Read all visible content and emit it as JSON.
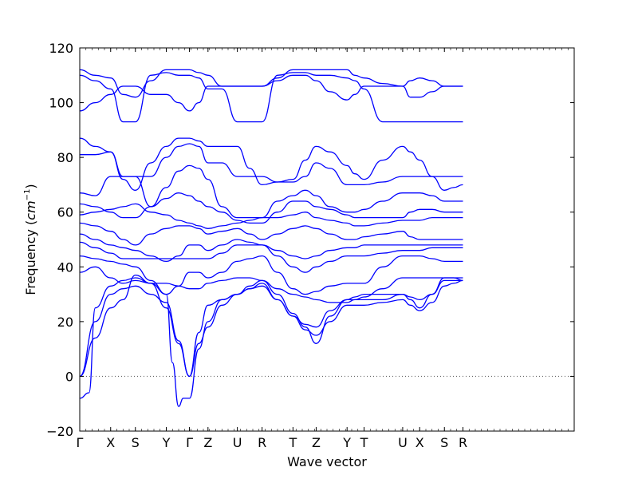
{
  "chart_data": {
    "type": "line",
    "title": "",
    "xlabel": "Wave vector",
    "ylabel": "Frequency",
    "ylabel_unit": "cm",
    "ylabel_unit_exponent": "−1",
    "ylim": [
      -20,
      120
    ],
    "yticks": [
      -20,
      0,
      20,
      40,
      60,
      80,
      100,
      120
    ],
    "xlim": [
      0,
      16
    ],
    "xticks": [
      {
        "label": "Γ",
        "x": 0
      },
      {
        "label": "X",
        "x": 1
      },
      {
        "label": "S",
        "x": 1.8
      },
      {
        "label": "Y",
        "x": 2.8
      },
      {
        "label": "Γ",
        "x": 3.55
      },
      {
        "label": "Z",
        "x": 4.15
      },
      {
        "label": "U",
        "x": 5.1
      },
      {
        "label": "R",
        "x": 5.9
      },
      {
        "label": "T",
        "x": 6.9
      },
      {
        "label": "Z",
        "x": 7.65
      },
      {
        "label": "Y",
        "x": 8.65
      },
      {
        "label": "T",
        "x": 9.2
      },
      {
        "label": "U",
        "x": 10.45
      },
      {
        "label": "X",
        "x": 11.0
      },
      {
        "label": "S",
        "x": 11.8
      },
      {
        "label": "R",
        "x": 12.4
      }
    ],
    "zero_line": {
      "y": 0,
      "style": "dotted"
    },
    "line_color": "#0000ff",
    "grid": false,
    "legend": "none",
    "series": [
      {
        "x": [
          0,
          0.5,
          1,
          1.4,
          1.8,
          2.3,
          2.8,
          3.2,
          3.55,
          3.85,
          4.15,
          4.6,
          5.1,
          5.5,
          5.9,
          6.4,
          6.9,
          7.3,
          7.65,
          8.1,
          8.65,
          8.9,
          9.2,
          9.8,
          10.45,
          10.7,
          11.0,
          11.4,
          11.8,
          12.1,
          12.4
        ],
        "y": [
          112,
          110,
          109,
          103,
          102,
          108,
          112,
          112,
          112,
          111,
          110,
          106,
          106,
          106,
          106,
          109,
          112,
          112,
          112,
          112,
          112,
          110,
          109,
          107,
          106,
          108,
          109,
          108,
          106,
          106,
          106
        ]
      },
      {
        "x": [
          0,
          0.5,
          1,
          1.4,
          1.8,
          2.3,
          2.8,
          3.2,
          3.55,
          3.85,
          4.15,
          4.6,
          5.1,
          5.5,
          5.9,
          6.4,
          6.9,
          7.3,
          7.65,
          8.1,
          8.65,
          8.9,
          9.2,
          9.8,
          10.45,
          10.7,
          11.0,
          11.4,
          11.8,
          12.1,
          12.4
        ],
        "y": [
          110,
          108,
          105,
          93,
          93,
          110,
          111,
          110,
          110,
          109,
          105,
          105,
          93,
          93,
          93,
          110,
          111,
          111,
          110,
          110,
          109,
          108,
          105,
          93,
          93,
          93,
          93,
          93,
          93,
          93,
          93
        ]
      },
      {
        "x": [
          0,
          0.5,
          1,
          1.4,
          1.8,
          2.3,
          2.8,
          3.2,
          3.55,
          3.85,
          4.15,
          4.6,
          5.1,
          5.5,
          5.9,
          6.4,
          6.9,
          7.3,
          7.65,
          8.1,
          8.65,
          8.9,
          9.2,
          9.8,
          10.45,
          10.7,
          11.0,
          11.4,
          11.8,
          12.1,
          12.4
        ],
        "y": [
          97,
          100,
          103,
          106,
          106,
          103,
          103,
          100,
          97,
          100,
          106,
          106,
          106,
          106,
          106,
          108,
          110,
          110,
          108,
          104,
          101,
          103,
          106,
          106,
          106,
          102,
          102,
          104,
          106,
          106,
          106
        ]
      },
      {
        "x": [
          0,
          0.5,
          1,
          1.4,
          1.8,
          2.3,
          2.8,
          3.2,
          3.55,
          3.85,
          4.15,
          4.6,
          5.1,
          5.5,
          5.9,
          6.4,
          6.9,
          7.3,
          7.65,
          8.1,
          8.65,
          8.9,
          9.2,
          9.8,
          10.45,
          10.7,
          11.0,
          11.4,
          11.8,
          12.1,
          12.4
        ],
        "y": [
          87,
          84,
          82,
          72,
          68,
          78,
          84,
          87,
          87,
          86,
          84,
          84,
          84,
          76,
          70,
          71,
          72,
          79,
          84,
          82,
          77,
          74,
          72,
          79,
          84,
          82,
          79,
          73,
          68,
          69,
          70
        ]
      },
      {
        "x": [
          0,
          0.5,
          1,
          1.4,
          1.8,
          2.3,
          2.8,
          3.2,
          3.55,
          3.85,
          4.15,
          4.6,
          5.1,
          5.5,
          5.9,
          6.4,
          6.9,
          7.3,
          7.65,
          8.1,
          8.65,
          8.9,
          9.2,
          9.8,
          10.45,
          10.7,
          11.0,
          11.4,
          11.8,
          12.1,
          12.4
        ],
        "y": [
          81,
          81,
          82,
          73,
          73,
          73,
          80,
          84,
          85,
          84,
          78,
          78,
          73,
          73,
          73,
          71,
          71,
          73,
          78,
          76,
          70,
          70,
          70,
          71,
          73,
          73,
          73,
          73,
          73,
          73,
          73
        ]
      },
      {
        "x": [
          0,
          0.5,
          1,
          1.4,
          1.8,
          2.3,
          2.8,
          3.2,
          3.55,
          3.85,
          4.15,
          4.6,
          5.1,
          5.5,
          5.9,
          6.4,
          6.9,
          7.3,
          7.65,
          8.1,
          8.65,
          8.9,
          9.2,
          9.8,
          10.45,
          10.7,
          11.0,
          11.4,
          11.8,
          12.1,
          12.4
        ],
        "y": [
          67,
          66,
          73,
          73,
          73,
          62,
          69,
          75,
          77,
          76,
          72,
          62,
          58,
          58,
          58,
          64,
          66,
          68,
          66,
          62,
          60,
          60,
          61,
          64,
          67,
          67,
          67,
          66,
          64,
          64,
          64
        ]
      },
      {
        "x": [
          0,
          0.5,
          1,
          1.4,
          1.8,
          2.3,
          2.8,
          3.2,
          3.55,
          3.85,
          4.15,
          4.6,
          5.1,
          5.5,
          5.9,
          6.4,
          6.9,
          7.3,
          7.65,
          8.1,
          8.65,
          8.9,
          9.2,
          9.8,
          10.45,
          10.7,
          11.0,
          11.4,
          11.8,
          12.1,
          12.4
        ],
        "y": [
          63,
          62,
          60,
          58,
          58,
          62,
          65,
          67,
          66,
          64,
          62,
          60,
          57,
          56,
          56,
          60,
          64,
          64,
          62,
          61,
          59,
          58,
          58,
          58,
          58,
          60,
          61,
          61,
          60,
          60,
          60
        ]
      },
      {
        "x": [
          0,
          0.5,
          1,
          1.4,
          1.8,
          2.3,
          2.8,
          3.2,
          3.55,
          3.85,
          4.15,
          4.6,
          5.1,
          5.5,
          5.9,
          6.4,
          6.9,
          7.3,
          7.65,
          8.1,
          8.65,
          8.9,
          9.2,
          9.8,
          10.45,
          10.7,
          11.0,
          11.4,
          11.8,
          12.1,
          12.4
        ],
        "y": [
          59,
          60,
          61,
          62,
          63,
          60,
          59,
          57,
          56,
          55,
          54,
          55,
          56,
          57,
          58,
          58,
          59,
          60,
          58,
          57,
          56,
          55,
          55,
          56,
          57,
          57,
          57,
          58,
          58,
          58,
          58
        ]
      },
      {
        "x": [
          0,
          0.5,
          1,
          1.4,
          1.8,
          2.3,
          2.8,
          3.2,
          3.55,
          3.85,
          4.15,
          4.6,
          5.1,
          5.5,
          5.9,
          6.4,
          6.9,
          7.3,
          7.65,
          8.1,
          8.65,
          8.9,
          9.2,
          9.8,
          10.45,
          10.7,
          11.0,
          11.4,
          11.8,
          12.1,
          12.4
        ],
        "y": [
          56,
          55,
          53,
          50,
          48,
          52,
          54,
          55,
          55,
          54,
          52,
          53,
          54,
          52,
          50,
          52,
          54,
          55,
          54,
          52,
          50,
          50,
          51,
          52,
          53,
          51,
          50,
          50,
          50,
          50,
          50
        ]
      },
      {
        "x": [
          0,
          0.5,
          1,
          1.4,
          1.8,
          2.3,
          2.8,
          3.2,
          3.55,
          3.85,
          4.15,
          4.6,
          5.1,
          5.5,
          5.9,
          6.4,
          6.9,
          7.3,
          7.65,
          8.1,
          8.65,
          8.9,
          9.2,
          9.8,
          10.45,
          10.7,
          11.0,
          11.4,
          11.8,
          12.1,
          12.4
        ],
        "y": [
          52,
          50,
          48,
          47,
          46,
          44,
          42,
          44,
          48,
          48,
          46,
          48,
          50,
          49,
          48,
          46,
          44,
          43,
          44,
          46,
          47,
          47,
          48,
          48,
          48,
          48,
          48,
          48,
          48,
          48,
          48
        ]
      },
      {
        "x": [
          0,
          0.5,
          1,
          1.4,
          1.8,
          2.3,
          2.8,
          3.2,
          3.55,
          3.85,
          4.15,
          4.6,
          5.1,
          5.5,
          5.9,
          6.4,
          6.9,
          7.3,
          7.65,
          8.1,
          8.65,
          8.9,
          9.2,
          9.8,
          10.45,
          10.7,
          11.0,
          11.4,
          11.8,
          12.1,
          12.4
        ],
        "y": [
          49,
          47,
          45,
          43,
          43,
          43,
          43,
          43,
          43,
          43,
          43,
          45,
          48,
          48,
          48,
          44,
          40,
          38,
          40,
          42,
          44,
          44,
          44,
          45,
          46,
          46,
          46,
          47,
          47,
          47,
          47
        ]
      },
      {
        "x": [
          0,
          0.5,
          1,
          1.4,
          1.8,
          2.3,
          2.8,
          3.2,
          3.55,
          3.85,
          4.15,
          4.6,
          5.1,
          5.5,
          5.9,
          6.4,
          6.9,
          7.3,
          7.65,
          8.1,
          8.65,
          8.9,
          9.2,
          9.8,
          10.45,
          10.7,
          11.0,
          11.4,
          11.8,
          12.1,
          12.4
        ],
        "y": [
          44,
          43,
          42,
          41,
          40,
          35,
          30,
          33,
          38,
          38,
          36,
          38,
          42,
          43,
          44,
          38,
          32,
          30,
          31,
          33,
          34,
          34,
          34,
          40,
          44,
          44,
          44,
          43,
          42,
          42,
          42
        ]
      },
      {
        "x": [
          0,
          0.5,
          1,
          1.4,
          1.8,
          2.3,
          2.8,
          3.2,
          3.55,
          3.85,
          4.15,
          4.6,
          5.1,
          5.5,
          5.9,
          6.4,
          6.9,
          7.3,
          7.65,
          8.1,
          8.65,
          8.9,
          9.2,
          9.8,
          10.45,
          10.7,
          11.0,
          11.4,
          11.8,
          12.1,
          12.4
        ],
        "y": [
          38,
          40,
          36,
          34,
          35,
          34,
          34,
          33,
          32,
          32,
          34,
          35,
          36,
          36,
          35,
          32,
          30,
          29,
          28,
          27,
          27,
          28,
          29,
          32,
          36,
          36,
          36,
          36,
          36,
          36,
          36
        ]
      },
      {
        "x": [
          0,
          0.5,
          1,
          1.4,
          1.8,
          2.3,
          2.8,
          3.2,
          3.55,
          3.85,
          4.15,
          4.6,
          5.1,
          5.5,
          5.9,
          6.4,
          6.9,
          7.3,
          7.65,
          8.1,
          8.65,
          8.9,
          9.2,
          9.8,
          10.45,
          10.7,
          11.0,
          11.4,
          11.8,
          12.1,
          12.4
        ],
        "y": [
          0,
          14,
          25,
          28,
          37,
          34,
          25,
          12,
          0,
          16,
          26,
          28,
          30,
          33,
          35,
          30,
          23,
          18,
          12,
          22,
          28,
          28,
          28,
          28,
          30,
          28,
          25,
          30,
          36,
          36,
          35
        ]
      },
      {
        "x": [
          0,
          0.5,
          1,
          1.4,
          1.8,
          2.3,
          2.8,
          3.2,
          3.55,
          3.85,
          4.15,
          4.6,
          5.1,
          5.5,
          5.9,
          6.4,
          6.9,
          7.3,
          7.65,
          8.1,
          8.65,
          8.9,
          9.2,
          9.8,
          10.45,
          10.7,
          11.0,
          11.4,
          11.8,
          12.1,
          12.4
        ],
        "y": [
          0,
          20,
          30,
          32,
          33,
          30,
          27,
          13,
          0,
          12,
          18,
          26,
          30,
          32,
          34,
          28,
          22,
          17,
          15,
          20,
          26,
          26,
          26,
          27,
          28,
          26,
          24,
          27,
          33,
          34,
          35
        ]
      },
      {
        "x": [
          0,
          0.3,
          0.5,
          1,
          1.4,
          1.8,
          2.3,
          2.8,
          3.0,
          3.2,
          3.35,
          3.55,
          3.85,
          4.15,
          4.6,
          5.1,
          5.5,
          5.9,
          6.4,
          6.9,
          7.3,
          7.65,
          8.1,
          8.65,
          8.9,
          9.2,
          9.8,
          10.45,
          10.7,
          11.0,
          11.4,
          11.8,
          12.1,
          12.4
        ],
        "y": [
          -8,
          -6,
          25,
          33,
          35,
          36,
          34,
          30,
          5,
          -11,
          -8,
          -8,
          10,
          20,
          28,
          30,
          32,
          33,
          28,
          22,
          19,
          18,
          24,
          28,
          29,
          30,
          30,
          30,
          29,
          28,
          30,
          35,
          35,
          35
        ]
      }
    ]
  }
}
